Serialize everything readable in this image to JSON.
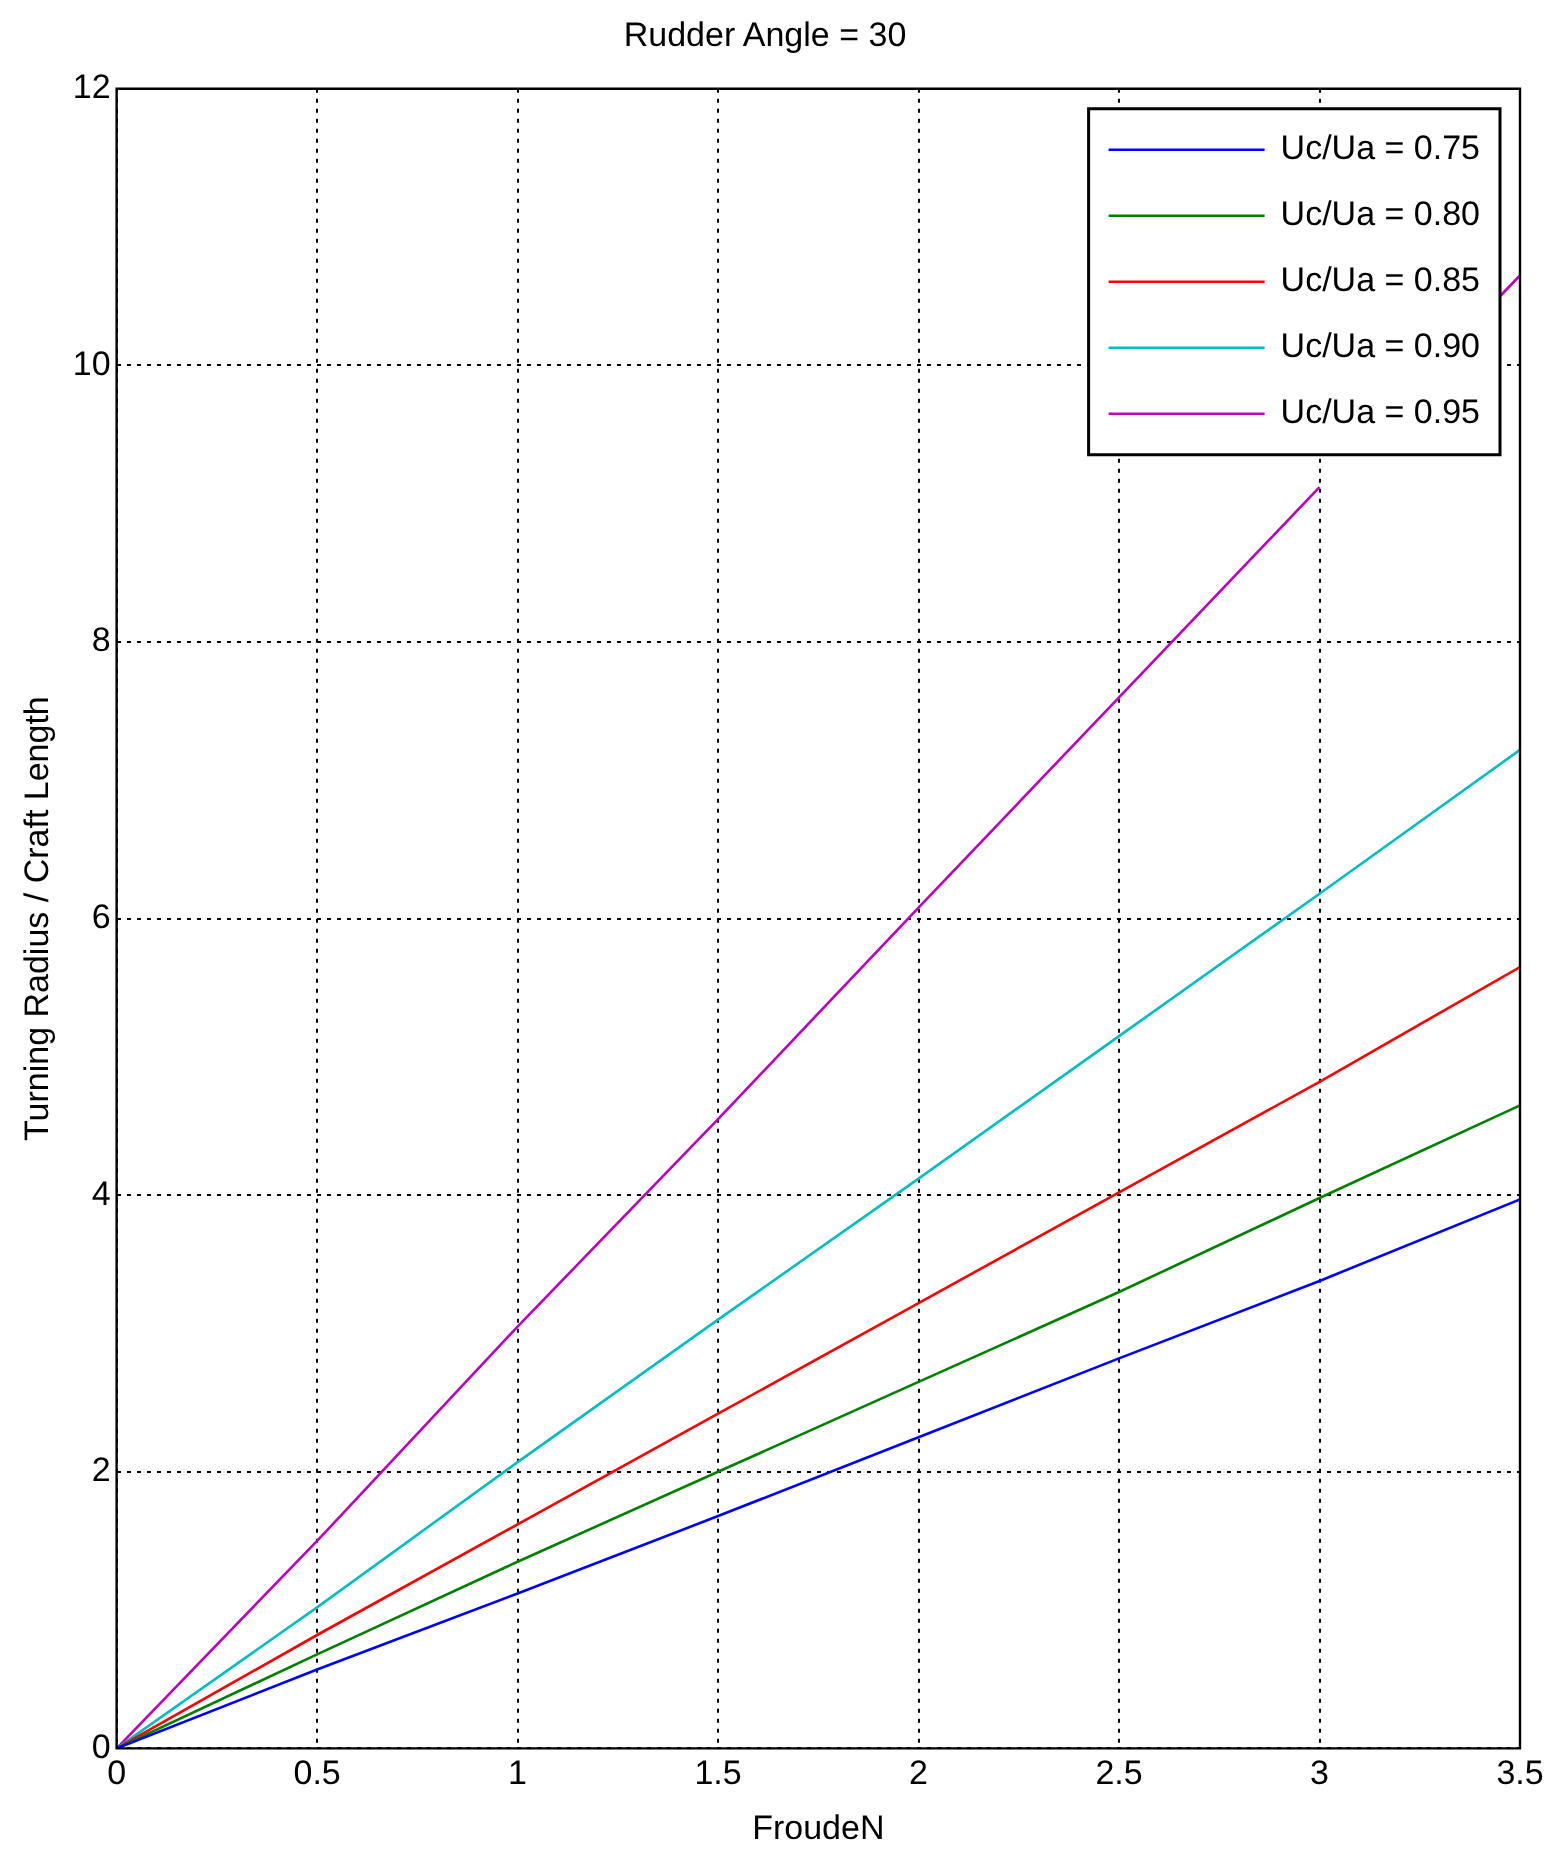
{
  "chart_data": {
    "type": "line",
    "title": "Rudder Angle = 30",
    "xlabel": "FroudeN",
    "ylabel": "Turning Radius / Craft Length",
    "x": [
      0,
      0.5,
      1,
      1.5,
      2,
      2.5,
      3,
      3.5
    ],
    "series": [
      {
        "name": "Uc/Ua = 0.75",
        "color": "#0000ff",
        "values": [
          0,
          0.57,
          1.12,
          1.68,
          2.25,
          2.82,
          3.38,
          3.97
        ]
      },
      {
        "name": "Uc/Ua = 0.80",
        "color": "#008000",
        "values": [
          0,
          0.68,
          1.35,
          2.0,
          2.65,
          3.3,
          3.98,
          4.65
        ]
      },
      {
        "name": "Uc/Ua = 0.85",
        "color": "#ff0000",
        "values": [
          0,
          0.82,
          1.62,
          2.42,
          3.22,
          4.02,
          4.82,
          5.65
        ]
      },
      {
        "name": "Uc/Ua = 0.90",
        "color": "#00bfbf",
        "values": [
          0,
          1.02,
          2.07,
          3.1,
          4.12,
          5.15,
          6.18,
          7.22
        ]
      },
      {
        "name": "Uc/Ua = 0.95",
        "color": "#bf00bf",
        "x": [
          0,
          0.5,
          1,
          1.5,
          2,
          2.5,
          3,
          3.2,
          3.45,
          3.5
        ],
        "values": [
          0,
          1.5,
          3.05,
          4.55,
          6.08,
          7.6,
          9.12,
          null,
          10.5,
          10.65
        ]
      }
    ],
    "xlim": [
      0,
      3.5
    ],
    "xticks": [
      0,
      0.5,
      1,
      1.5,
      2,
      2.5,
      3,
      3.5
    ],
    "ylim": [
      0,
      12
    ],
    "yticks": [
      0,
      2,
      4,
      6,
      8,
      10,
      12
    ],
    "grid": true,
    "legend": "top right",
    "line_style": "solid",
    "marker": "none"
  }
}
